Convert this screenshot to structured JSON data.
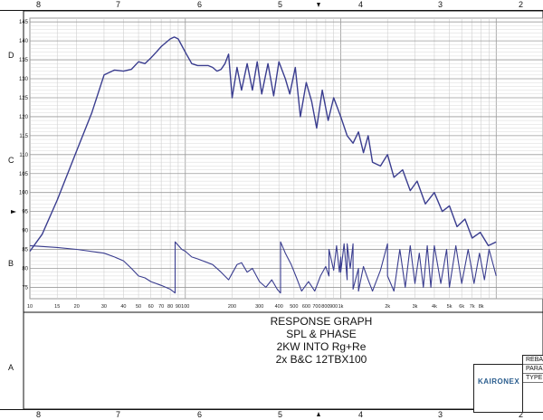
{
  "ruler": {
    "columns": [
      "8",
      "7",
      "6",
      "5",
      "4",
      "3",
      "2"
    ],
    "rows": [
      "D",
      "C",
      "B",
      "A"
    ]
  },
  "chart_data": {
    "type": "line",
    "title": "",
    "xscale": "log",
    "xlim": [
      10,
      20000
    ],
    "ylim": [
      72,
      146
    ],
    "grid": true,
    "x_tick_labels": [
      "10",
      "15",
      "20",
      "30",
      "40",
      "50",
      "60",
      "70",
      "80",
      "90",
      "100",
      "200",
      "300",
      "400",
      "500",
      "600",
      "700",
      "800",
      "900",
      "1k",
      "2k",
      "3k",
      "4k",
      "5k",
      "6k",
      "7k",
      "8k"
    ],
    "y_tick_labels": [
      "75",
      "80",
      "85",
      "90",
      "95",
      "100",
      "105",
      "110",
      "115",
      "120",
      "125",
      "130",
      "135",
      "140",
      "145"
    ],
    "series": [
      {
        "x": [
          10,
          12,
          15,
          20,
          25,
          30,
          35,
          40,
          45,
          50,
          55,
          60,
          65,
          70,
          80,
          85,
          90,
          100,
          110,
          120,
          130,
          140,
          150,
          160,
          170,
          180,
          190,
          200,
          215,
          230,
          250,
          270,
          290,
          310,
          340,
          370,
          400,
          440,
          470,
          510,
          550,
          600,
          650,
          700,
          760,
          830,
          900,
          1000,
          1100,
          1200,
          1300,
          1400,
          1500,
          1600,
          1800,
          2000,
          2200,
          2500,
          2800,
          3100,
          3500,
          4000,
          4500,
          5000,
          5600,
          6300,
          7000,
          7900,
          8900,
          10000
        ],
        "y": [
          84.5,
          89,
          98,
          111,
          121,
          131,
          132.3,
          132,
          132.5,
          134.5,
          134,
          135.5,
          137,
          138.5,
          140.5,
          141,
          140.5,
          137,
          134,
          133.5,
          133.5,
          133.5,
          133,
          132,
          132.5,
          134,
          136.5,
          125,
          133,
          127,
          134,
          127,
          134.5,
          126,
          134,
          125.5,
          134.5,
          130,
          126,
          133,
          120,
          129,
          124,
          117,
          127,
          119,
          125,
          120,
          115,
          113,
          116,
          110.5,
          115,
          108,
          107,
          110,
          104,
          106,
          100.5,
          103,
          97,
          100,
          95,
          96.5,
          91,
          93,
          88,
          89.5,
          86,
          87
        ]
      },
      {
        "x": [
          10,
          15,
          20,
          30,
          35,
          40,
          45,
          50,
          55,
          60,
          70,
          80,
          86,
          86,
          95,
          100,
          110,
          120,
          150,
          170,
          190,
          215,
          230,
          250,
          270,
          300,
          330,
          360,
          390,
          410,
          410,
          440,
          480,
          520,
          560,
          620,
          680,
          740,
          800,
          840,
          840,
          900,
          940,
          980,
          1000,
          1000,
          1050,
          1100,
          1100,
          1150,
          1200,
          1200,
          1300,
          1300,
          1400,
          1500,
          1600,
          1800,
          2000,
          2000,
          2200,
          2400,
          2600,
          2800,
          3000,
          3200,
          3400,
          3600,
          3800,
          4000,
          4400,
          4800,
          5000,
          5500,
          6000,
          6600,
          7200,
          7800,
          8400,
          9000,
          10000
        ],
        "y": [
          86,
          85.5,
          85,
          84,
          83,
          82,
          80,
          78,
          77.5,
          76.5,
          75.5,
          74.5,
          73.5,
          87,
          85,
          84.5,
          83,
          82.5,
          81,
          79,
          77,
          81,
          81.5,
          79,
          80,
          76.5,
          75,
          77,
          74.5,
          73.5,
          87,
          84,
          81,
          77.5,
          74,
          76.5,
          74,
          78,
          80.5,
          78,
          85,
          79.5,
          86,
          79,
          83,
          79,
          86.5,
          77,
          86.5,
          80,
          86.5,
          74.5,
          80,
          74,
          80.5,
          77,
          74,
          79.5,
          86.5,
          78,
          74,
          85,
          75,
          86,
          76,
          84,
          75,
          86,
          75,
          86,
          76,
          85,
          75,
          86,
          76,
          85,
          76,
          84,
          77,
          85,
          78
        ]
      }
    ]
  },
  "title_block": {
    "line1": "RESPONSE GRAPH",
    "line2": "SPL & PHASE",
    "line3": "2KW INTO Rg+Re",
    "line4": "2x B&C 12TBX100"
  },
  "logo_text": "KAIRONEX",
  "info_table": [
    "REBA",
    "PARA",
    "TYPE"
  ],
  "colors": {
    "curve": "#3a3d8f",
    "grid": "#9a9a9a",
    "grid_minor": "#cfcfcf"
  }
}
